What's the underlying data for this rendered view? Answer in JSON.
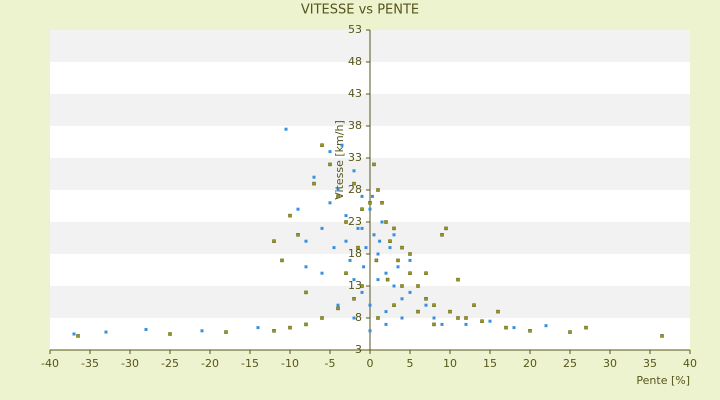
{
  "chart_data": {
    "type": "scatter",
    "title": "VITESSE vs PENTE",
    "x_label": "Pente [%]",
    "y_label": "Vitesse [km/h]",
    "xlim": [
      -40,
      40
    ],
    "xticks": [
      -40,
      -35,
      -30,
      -25,
      -20,
      -15,
      -10,
      -5,
      0,
      5,
      10,
      15,
      20,
      25,
      30,
      35,
      40
    ],
    "ylim": [
      3,
      53
    ],
    "yticks": [
      3,
      8,
      13,
      18,
      23,
      28,
      33,
      38,
      43,
      48,
      53
    ],
    "band_colors": [
      "#f2f2f2",
      "#ffffff"
    ],
    "series": [
      {
        "color": "#3a8fd8",
        "x": [
          -37,
          -33,
          -28,
          -21,
          -14,
          -10.5,
          -9,
          -8,
          -7,
          -6,
          -5,
          -4.5,
          -4,
          -3.5,
          -3,
          -2.5,
          -2,
          -1.5,
          -1,
          -0.5,
          0,
          0.5,
          1,
          1.5,
          2,
          2.5,
          3,
          3.5,
          4,
          5,
          6,
          7,
          8,
          10,
          12,
          15,
          18,
          22,
          -3,
          -2,
          -1,
          0,
          1,
          2,
          -6,
          -4,
          -2,
          0,
          2,
          4,
          -1,
          0.3,
          1.2,
          -0.8,
          3,
          5,
          -5,
          -8,
          6,
          9
        ],
        "y": [
          5.5,
          5.8,
          6.2,
          6,
          6.5,
          37.5,
          25,
          16,
          30,
          22,
          34,
          19,
          28,
          35,
          24,
          17,
          31,
          22,
          27,
          19,
          25,
          21,
          18,
          23,
          15,
          19,
          13,
          16,
          11,
          12,
          9,
          10,
          8,
          9,
          7,
          7.5,
          6.5,
          6.8,
          20,
          14,
          12,
          10,
          14,
          9,
          15,
          10,
          8,
          6,
          7,
          8,
          22,
          27,
          20,
          16,
          21,
          17,
          26,
          20,
          13,
          7
        ]
      },
      {
        "color": "#9a9a10",
        "x": [
          -36.5,
          -25,
          -18,
          -12,
          -10,
          -8,
          -6,
          -4,
          -2,
          -1,
          -11,
          -10,
          -9,
          -7,
          -6,
          -5,
          -4,
          -3,
          -2,
          -1,
          0,
          0.5,
          1,
          1.5,
          2,
          2.5,
          3,
          3.5,
          4,
          5,
          6,
          7,
          8,
          9,
          9.5,
          10,
          11,
          12,
          14,
          16,
          17,
          20,
          25,
          27,
          36.5,
          -12,
          -8,
          -3,
          1,
          3,
          4,
          6,
          8,
          -1.5,
          0.8,
          2.2,
          5,
          7,
          11,
          13
        ],
        "y": [
          5.2,
          5.5,
          5.8,
          6,
          6.5,
          7,
          8,
          9.5,
          11,
          13,
          17,
          24,
          21,
          29,
          35,
          32,
          27,
          23,
          29,
          25,
          26,
          32,
          28,
          26,
          23,
          20,
          22,
          17,
          19,
          15,
          13,
          11,
          10,
          21,
          22,
          9,
          14,
          8,
          7.5,
          9,
          6.5,
          6,
          5.8,
          6.5,
          5.2,
          20,
          12,
          15,
          8,
          10,
          13,
          9,
          7,
          19,
          17,
          14,
          18,
          15,
          8,
          10
        ]
      }
    ]
  }
}
